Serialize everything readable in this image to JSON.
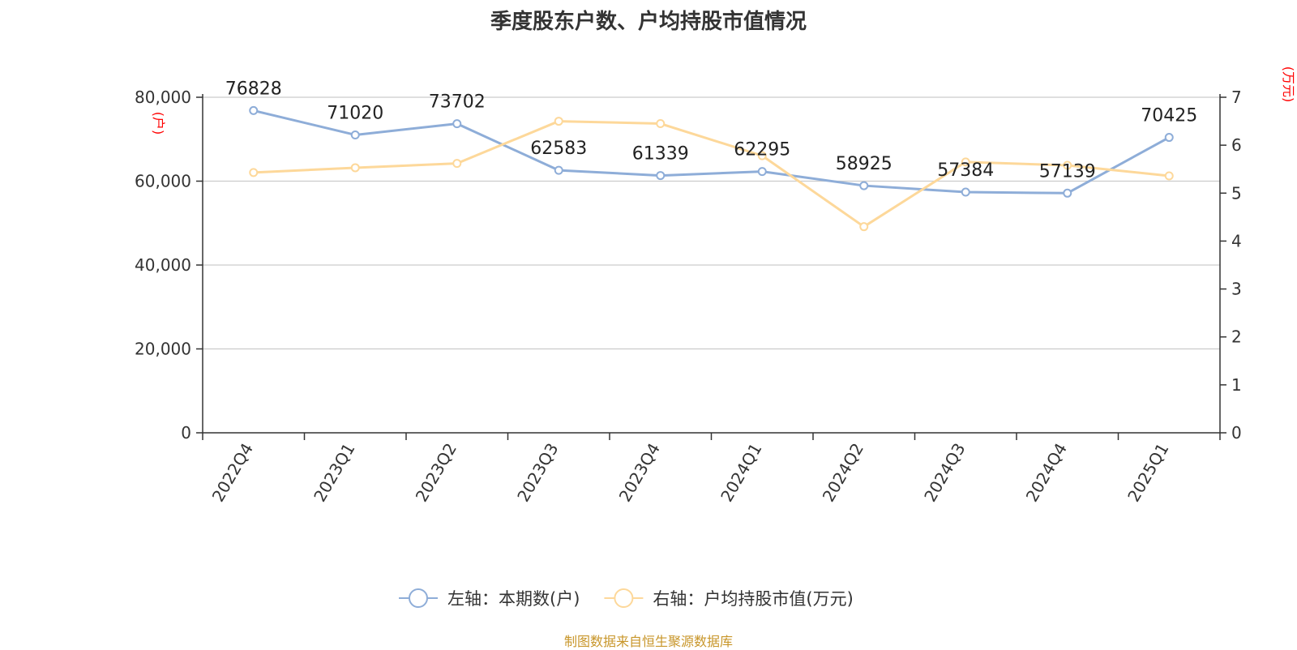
{
  "chart_data": {
    "type": "line",
    "title": "季度股东户数、户均持股市值情况",
    "categories": [
      "2022Q4",
      "2023Q1",
      "2023Q2",
      "2023Q3",
      "2023Q4",
      "2024Q1",
      "2024Q2",
      "2024Q3",
      "2024Q4",
      "2025Q1"
    ],
    "left_axis": {
      "unit": "(户)",
      "ylim": [
        0,
        80000
      ],
      "ticks": [
        0,
        20000,
        40000,
        60000,
        80000
      ],
      "tick_labels": [
        "0",
        "20,000",
        "40,000",
        "60,000",
        "80,000"
      ]
    },
    "right_axis": {
      "unit": "(万元)",
      "ylim": [
        0,
        7
      ],
      "ticks": [
        0,
        1,
        2,
        3,
        4,
        5,
        6,
        7
      ],
      "tick_labels": [
        "0",
        "1",
        "2",
        "3",
        "4",
        "5",
        "6",
        "7"
      ]
    },
    "series": [
      {
        "name": "左轴：本期数(户)",
        "axis": "left",
        "color": "#8eadd8",
        "values": [
          76828,
          71020,
          73702,
          62583,
          61339,
          62295,
          58925,
          57384,
          57139,
          70425
        ],
        "data_labels": [
          "76828",
          "71020",
          "73702",
          "62583",
          "61339",
          "62295",
          "58925",
          "57384",
          "57139",
          "70425"
        ]
      },
      {
        "name": "右轴：户均持股市值(万元)",
        "axis": "right",
        "color": "#fdd89a",
        "values": [
          5.43,
          5.53,
          5.62,
          6.5,
          6.45,
          5.78,
          4.3,
          5.65,
          5.58,
          5.36
        ]
      }
    ],
    "grid": true,
    "legend_position": "bottom"
  },
  "source": "制图数据来自恒生聚源数据库"
}
